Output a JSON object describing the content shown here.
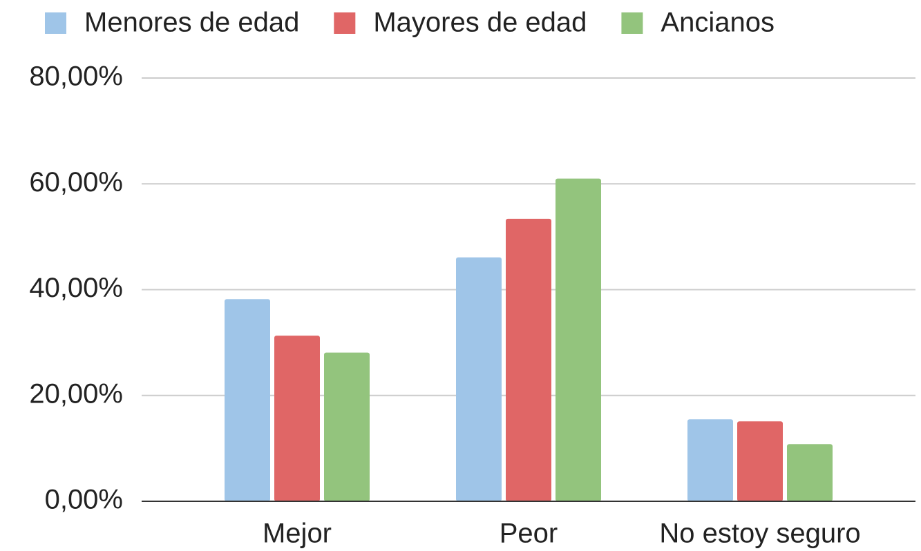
{
  "chart_data": {
    "type": "bar",
    "categories": [
      "Mejor",
      "Peor",
      "No estoy seguro"
    ],
    "series": [
      {
        "name": "Menores de edad",
        "color": "#9fc5e8",
        "values": [
          38.2,
          46.1,
          15.5
        ]
      },
      {
        "name": "Mayores de edad",
        "color": "#e06666",
        "values": [
          31.3,
          53.4,
          15.1
        ]
      },
      {
        "name": "Ancianos",
        "color": "#93c47d",
        "values": [
          28.1,
          61.0,
          10.8
        ]
      }
    ],
    "ylim": [
      0,
      80
    ],
    "yticks": [
      {
        "value": 0,
        "label": "0,00%"
      },
      {
        "value": 20,
        "label": "20,00%"
      },
      {
        "value": 40,
        "label": "40,00%"
      },
      {
        "value": 60,
        "label": "60,00%"
      },
      {
        "value": 80,
        "label": "80,00%"
      }
    ],
    "grid": true,
    "legend": "top"
  }
}
